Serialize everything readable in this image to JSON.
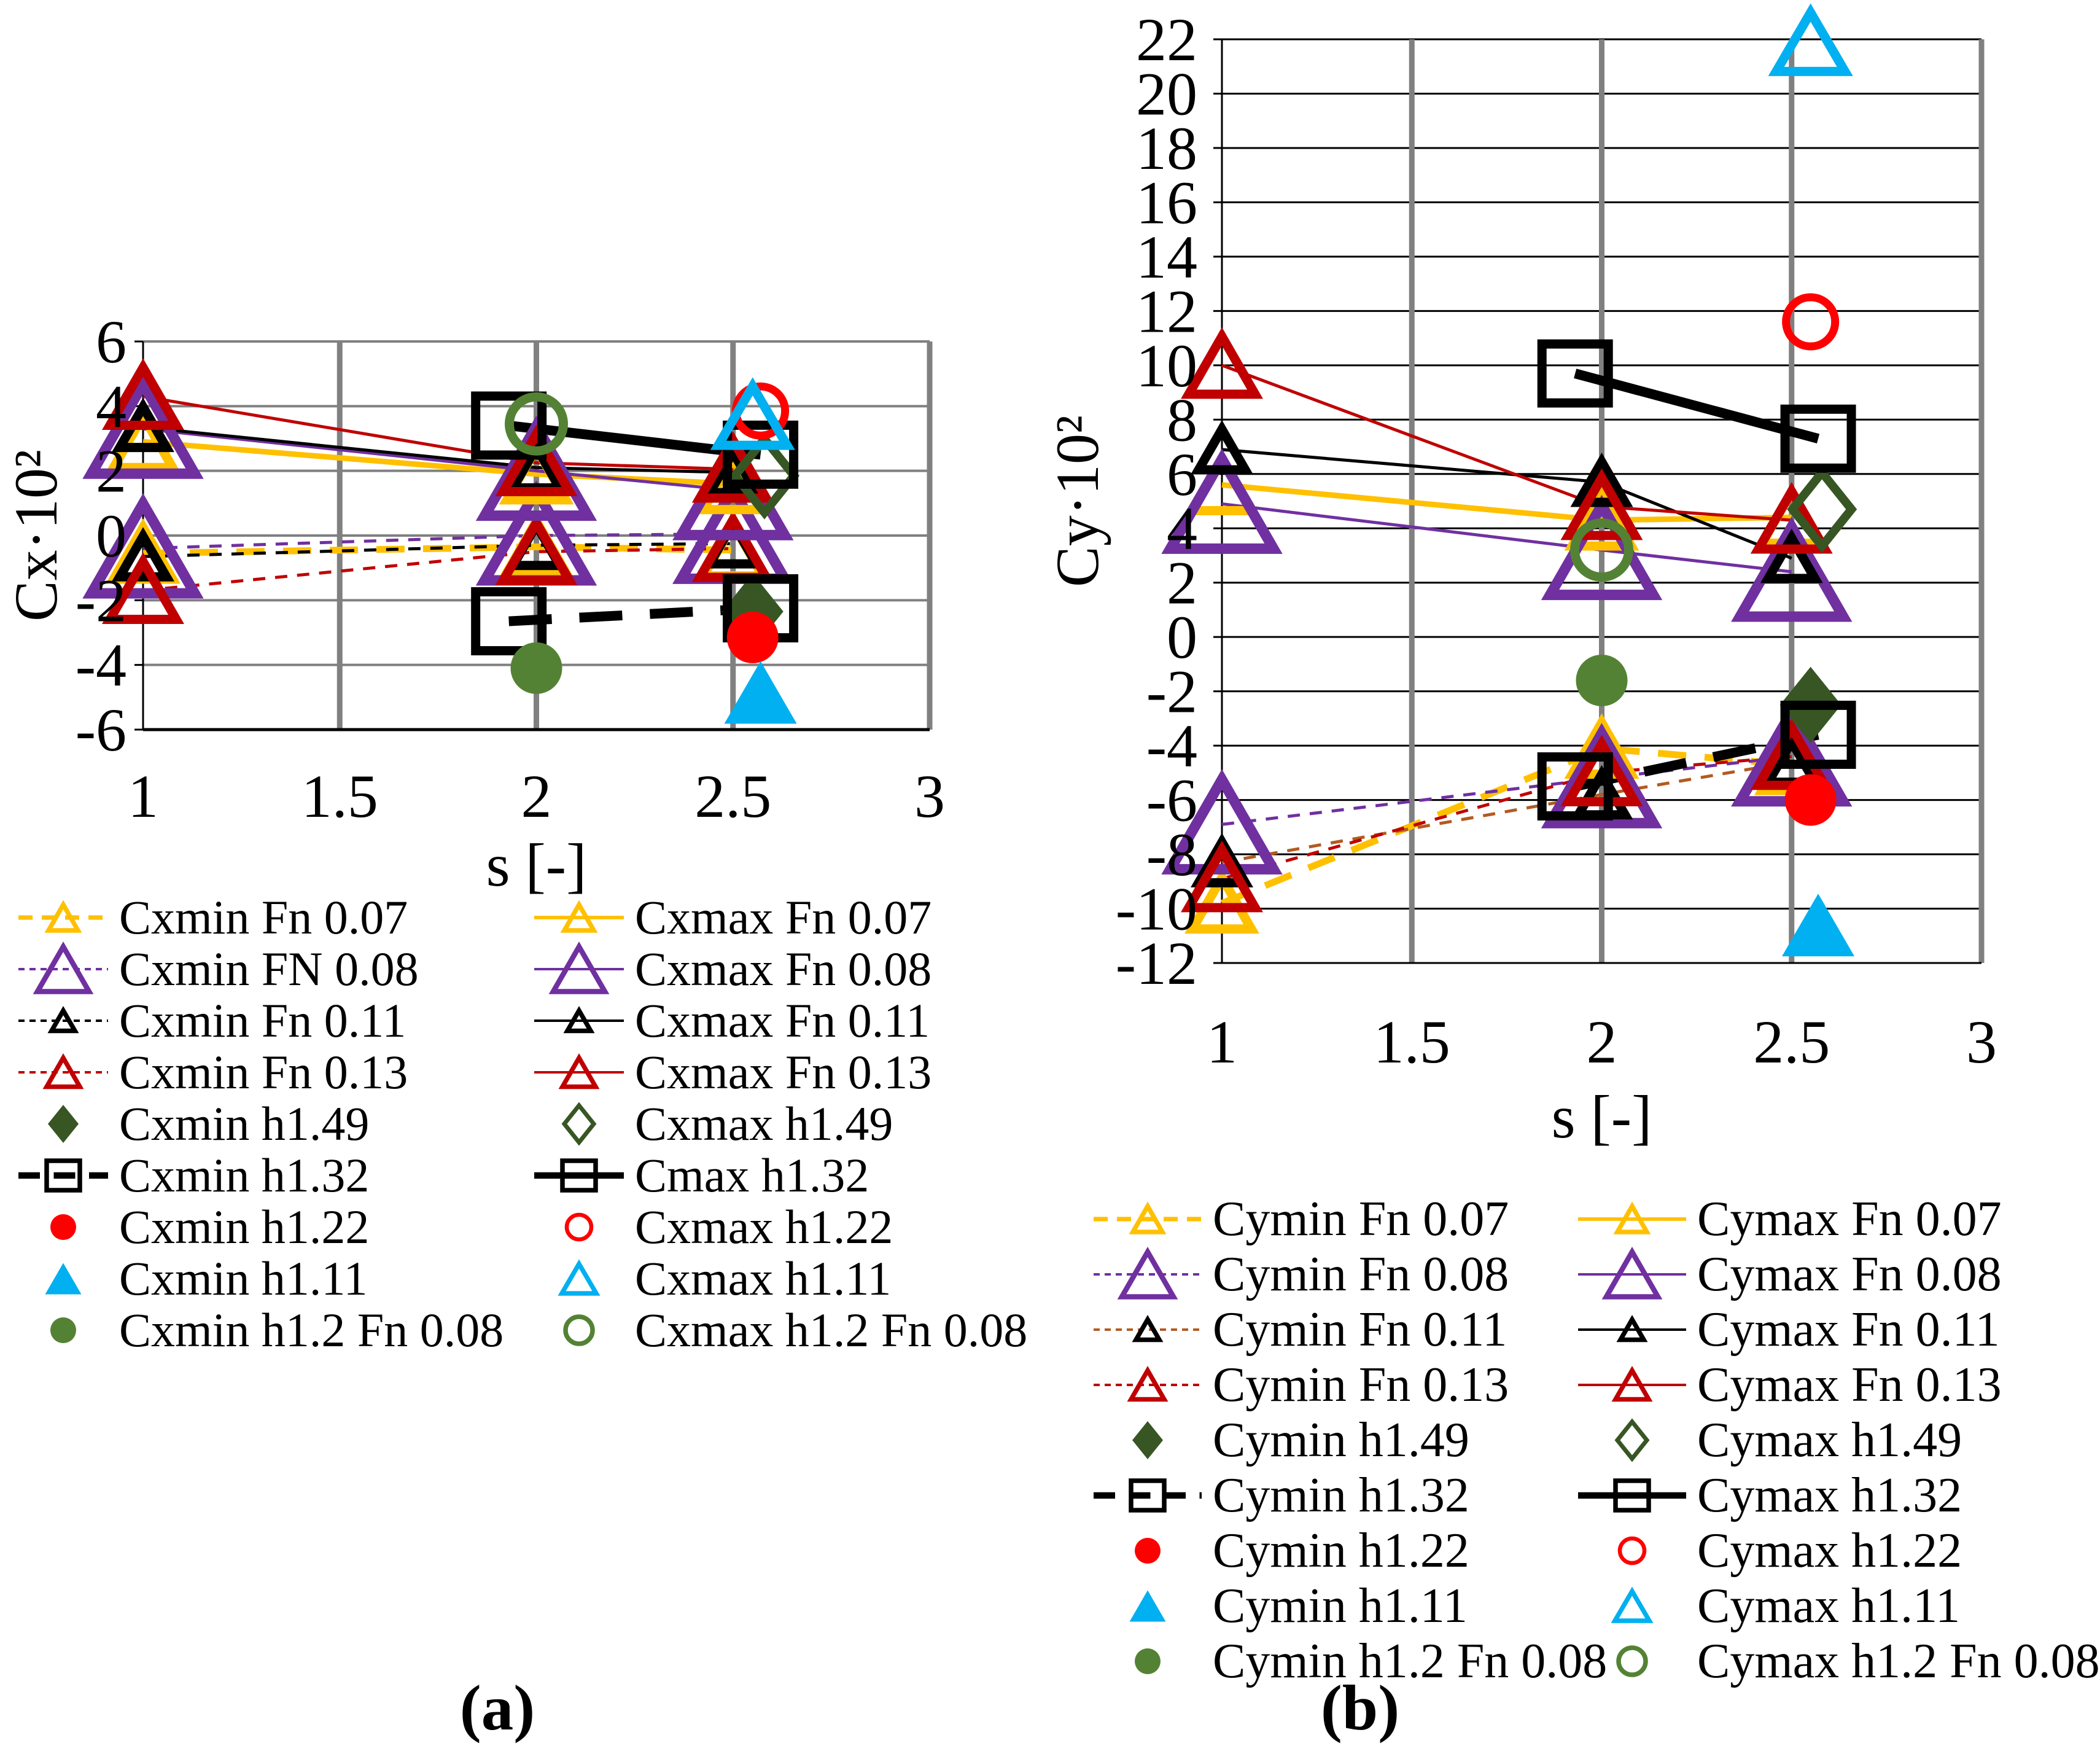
{
  "figure": {
    "caption_a": "(a)",
    "caption_b": "(b)",
    "background": "#FFFFFF",
    "grid_vertical_color": "#808080",
    "grid_horizontal_color_a": "#808080",
    "grid_horizontal_color_b": "#000000",
    "axis_color": "#000000"
  },
  "chart_data": [
    {
      "key": "a",
      "type": "scatter",
      "x_label": "s [-]",
      "y_label": "Cx·10²",
      "x_ticks": [
        1,
        1.5,
        2,
        2.5,
        3
      ],
      "x_min": 1,
      "x_max": 3,
      "y_min": -6,
      "y_max": 6,
      "y_step": 2,
      "grid": "on",
      "legend_position": "below",
      "series": [
        {
          "id": "cxmin-fn007",
          "label": "Cxmin Fn 0.07",
          "color": "#FFC000",
          "line": {
            "style": "dashed",
            "width": 11,
            "dash": "46 30"
          },
          "marker": {
            "shape": "triangle",
            "fill": "open",
            "w": 96,
            "h": 84,
            "sw": 15
          },
          "points": [
            [
              1,
              -0.55
            ],
            [
              2,
              -0.35
            ],
            [
              2.5,
              -0.45
            ]
          ]
        },
        {
          "id": "cxmin-fn008",
          "label": "Cxmin FN 0.08",
          "color": "#7030A0",
          "line": {
            "style": "dashed",
            "width": 5,
            "dash": "20 16"
          },
          "marker": {
            "shape": "triangle",
            "fill": "open",
            "w": 168,
            "h": 146,
            "sw": 17
          },
          "points": [
            [
              1,
              -0.4
            ],
            [
              2,
              0.0
            ],
            [
              2.5,
              0.05
            ]
          ]
        },
        {
          "id": "cxmin-fn011",
          "label": "Cxmin Fn 0.11",
          "color": "#000000",
          "line": {
            "style": "dashed",
            "width": 5,
            "dash": "20 16"
          },
          "marker": {
            "shape": "triangle",
            "fill": "open",
            "w": 76,
            "h": 66,
            "sw": 15
          },
          "points": [
            [
              1,
              -0.65
            ],
            [
              2,
              -0.3
            ],
            [
              2.5,
              -0.25
            ]
          ]
        },
        {
          "id": "cxmin-fn013",
          "label": "Cxmin Fn 0.13",
          "color": "#C00000",
          "line": {
            "style": "dashed",
            "width": 5,
            "dash": "20 16"
          },
          "marker": {
            "shape": "triangle",
            "fill": "open",
            "w": 108,
            "h": 94,
            "sw": 15
          },
          "points": [
            [
              1,
              -1.7
            ],
            [
              2,
              -0.5
            ],
            [
              2.5,
              -0.4
            ]
          ]
        },
        {
          "id": "cxmin-h149",
          "label": "Cxmin h1.49",
          "color": "#375623",
          "marker": {
            "shape": "diamond",
            "fill": "solid",
            "w": 100,
            "h": 124
          },
          "points": [
            [
              2.55,
              -2.35
            ]
          ]
        },
        {
          "id": "cxmin-h132",
          "label": "Cxmin h1.32",
          "color": "#000000",
          "line": {
            "style": "dashed",
            "width": 16,
            "dash": "70 45"
          },
          "marker": {
            "shape": "square",
            "fill": "open",
            "w": 108,
            "h": 96,
            "sw": 15
          },
          "points": [
            [
              1.93,
              -2.65
            ],
            [
              2.57,
              -2.25
            ]
          ]
        },
        {
          "id": "cxmin-h122",
          "label": "Cxmin h1.22",
          "color": "#FF0000",
          "marker": {
            "shape": "circle",
            "fill": "solid",
            "r": 42
          },
          "points": [
            [
              2.55,
              -3.15
            ]
          ]
        },
        {
          "id": "cxmin-h111",
          "label": "Cxmin h1.11",
          "color": "#00B0F0",
          "marker": {
            "shape": "triangle",
            "fill": "solid",
            "w": 118,
            "h": 102
          },
          "points": [
            [
              2.57,
              -4.85
            ]
          ]
        },
        {
          "id": "cxmin-h12fn008",
          "label": "Cxmin h1.2 Fn 0.08",
          "color": "#548235",
          "marker": {
            "shape": "circle",
            "fill": "solid",
            "r": 42
          },
          "points": [
            [
              2,
              -4.1
            ]
          ]
        },
        {
          "id": "cxmax-fn007",
          "label": "Cxmax Fn 0.07",
          "color": "#FFC000",
          "line": {
            "style": "solid",
            "width": 9
          },
          "marker": {
            "shape": "triangle",
            "fill": "open",
            "w": 96,
            "h": 84,
            "sw": 15
          },
          "points": [
            [
              1,
              2.9
            ],
            [
              2,
              1.9
            ],
            [
              2.5,
              1.6
            ]
          ]
        },
        {
          "id": "cxmax-fn008",
          "label": "Cxmax Fn 0.08",
          "color": "#7030A0",
          "line": {
            "style": "solid",
            "width": 5
          },
          "marker": {
            "shape": "triangle",
            "fill": "open",
            "w": 168,
            "h": 146,
            "sw": 17
          },
          "points": [
            [
              1,
              3.3
            ],
            [
              2,
              2.0
            ],
            [
              2.5,
              1.4
            ]
          ]
        },
        {
          "id": "cxmax-fn011",
          "label": "Cxmax Fn 0.11",
          "color": "#000000",
          "line": {
            "style": "solid",
            "width": 5
          },
          "marker": {
            "shape": "triangle",
            "fill": "open",
            "w": 76,
            "h": 66,
            "sw": 15
          },
          "points": [
            [
              1,
              3.35
            ],
            [
              2,
              2.1
            ],
            [
              2.5,
              1.95
            ]
          ]
        },
        {
          "id": "cxmax-fn013",
          "label": "Cxmax Fn 0.13",
          "color": "#C00000",
          "line": {
            "style": "solid",
            "width": 5
          },
          "marker": {
            "shape": "triangle",
            "fill": "open",
            "w": 108,
            "h": 94,
            "sw": 15
          },
          "points": [
            [
              1,
              4.3
            ],
            [
              2,
              2.25
            ],
            [
              2.5,
              2.05
            ]
          ]
        },
        {
          "id": "cxmax-h149",
          "label": "Cxmax h1.49",
          "color": "#375623",
          "marker": {
            "shape": "diamond",
            "fill": "open",
            "w": 96,
            "h": 120,
            "sw": 14
          },
          "points": [
            [
              2.58,
              1.85
            ]
          ]
        },
        {
          "id": "cmax-h132",
          "label": "Cmax h1.32",
          "color": "#000000",
          "line": {
            "style": "solid",
            "width": 16
          },
          "marker": {
            "shape": "square",
            "fill": "open",
            "w": 108,
            "h": 96,
            "sw": 15
          },
          "points": [
            [
              1.93,
              3.4
            ],
            [
              2.57,
              2.5
            ]
          ]
        },
        {
          "id": "cxmax-h122",
          "label": "Cxmax h1.22",
          "color": "#FF0000",
          "marker": {
            "shape": "circle",
            "fill": "open",
            "r": 40,
            "sw": 13
          },
          "points": [
            [
              2.57,
              3.85
            ]
          ]
        },
        {
          "id": "cxmax-h111",
          "label": "Cxmax h1.11",
          "color": "#00B0F0",
          "marker": {
            "shape": "triangle",
            "fill": "open",
            "w": 112,
            "h": 96,
            "sw": 15
          },
          "points": [
            [
              2.55,
              3.7
            ]
          ]
        },
        {
          "id": "cxmax-h12fn008",
          "label": "Cxmax h1.2 Fn 0.08",
          "color": "#548235",
          "marker": {
            "shape": "circle",
            "fill": "open",
            "r": 44,
            "sw": 15
          },
          "points": [
            [
              2,
              3.45
            ]
          ]
        }
      ],
      "legend_left": [
        "cxmin-fn007",
        "cxmin-fn008",
        "cxmin-fn011",
        "cxmin-fn013",
        "cxmin-h149",
        "cxmin-h132",
        "cxmin-h122",
        "cxmin-h111",
        "cxmin-h12fn008"
      ],
      "legend_right": [
        "cxmax-fn007",
        "cxmax-fn008",
        "cxmax-fn011",
        "cxmax-fn013",
        "cxmax-h149",
        "cmax-h132",
        "cxmax-h122",
        "cxmax-h111",
        "cxmax-h12fn008"
      ]
    },
    {
      "key": "b",
      "type": "scatter",
      "x_label": "s [-]",
      "y_label": "Cy·10²",
      "x_ticks": [
        1,
        1.5,
        2,
        2.5,
        3
      ],
      "x_min": 1,
      "x_max": 3,
      "y_min": -12,
      "y_max": 22,
      "y_step": 2,
      "grid": "on",
      "legend_position": "below",
      "series": [
        {
          "id": "cymin-fn007",
          "label": "Cymin Fn 0.07",
          "color": "#FFC000",
          "line": {
            "style": "dashed",
            "width": 11,
            "dash": "46 30"
          },
          "marker": {
            "shape": "triangle",
            "fill": "open",
            "w": 96,
            "h": 84,
            "sw": 15
          },
          "points": [
            [
              1,
              -9.8
            ],
            [
              2,
              -4.1
            ],
            [
              2.5,
              -4.7
            ]
          ]
        },
        {
          "id": "cymin-fn008",
          "label": "Cymin Fn 0.08",
          "color": "#7030A0",
          "line": {
            "style": "dashed",
            "width": 5,
            "dash": "20 16"
          },
          "marker": {
            "shape": "triangle",
            "fill": "open",
            "w": 168,
            "h": 146,
            "sw": 17
          },
          "points": [
            [
              1,
              -6.9
            ],
            [
              2,
              -5.2
            ],
            [
              2.5,
              -4.4
            ]
          ]
        },
        {
          "id": "cymin-fn011",
          "label": "Cymin Fn 0.11",
          "color": "#000000",
          "line_color": "#B35A1F",
          "line": {
            "style": "dashed",
            "width": 5,
            "dash": "20 16"
          },
          "marker": {
            "shape": "triangle",
            "fill": "open",
            "w": 76,
            "h": 66,
            "sw": 15
          },
          "points": [
            [
              1,
              -8.3
            ],
            [
              2,
              -5.8
            ],
            [
              2.5,
              -4.6
            ]
          ]
        },
        {
          "id": "cymin-fn013",
          "label": "Cymin Fn 0.13",
          "color": "#C00000",
          "line": {
            "style": "dashed",
            "width": 5,
            "dash": "20 16"
          },
          "marker": {
            "shape": "triangle",
            "fill": "open",
            "w": 108,
            "h": 94,
            "sw": 15
          },
          "points": [
            [
              1,
              -8.9
            ],
            [
              2,
              -5.0
            ],
            [
              2.5,
              -4.4
            ]
          ]
        },
        {
          "id": "cymin-h149",
          "label": "Cymin h1.49",
          "color": "#375623",
          "marker": {
            "shape": "diamond",
            "fill": "solid",
            "w": 100,
            "h": 124
          },
          "points": [
            [
              2.55,
              -2.5
            ]
          ]
        },
        {
          "id": "cymin-h132",
          "label": "Cymin h1.32",
          "color": "#000000",
          "line": {
            "style": "dashed",
            "width": 16,
            "dash": "70 45"
          },
          "marker": {
            "shape": "square",
            "fill": "open",
            "w": 108,
            "h": 96,
            "sw": 15
          },
          "points": [
            [
              1.93,
              -5.5
            ],
            [
              2.57,
              -3.6
            ]
          ]
        },
        {
          "id": "cymin-h122",
          "label": "Cymin h1.22",
          "color": "#FF0000",
          "marker": {
            "shape": "circle",
            "fill": "solid",
            "r": 42
          },
          "points": [
            [
              2.55,
              -6.0
            ]
          ]
        },
        {
          "id": "cymin-h111",
          "label": "Cymin h1.11",
          "color": "#00B0F0",
          "marker": {
            "shape": "triangle",
            "fill": "solid",
            "w": 118,
            "h": 102
          },
          "points": [
            [
              2.57,
              -10.6
            ]
          ]
        },
        {
          "id": "cymin-h12fn008",
          "label": "Cymin h1.2 Fn 0.08",
          "color": "#548235",
          "marker": {
            "shape": "circle",
            "fill": "solid",
            "r": 42
          },
          "points": [
            [
              2,
              -1.6
            ]
          ]
        },
        {
          "id": "cymax-fn007",
          "label": "Cymax Fn 0.07",
          "color": "#FFC000",
          "line": {
            "style": "solid",
            "width": 9
          },
          "marker": {
            "shape": "triangle",
            "fill": "open",
            "w": 96,
            "h": 84,
            "sw": 15
          },
          "points": [
            [
              1,
              5.6
            ],
            [
              2,
              4.3
            ],
            [
              2.5,
              4.4
            ]
          ]
        },
        {
          "id": "cymax-fn008",
          "label": "Cymax Fn 0.08",
          "color": "#7030A0",
          "line": {
            "style": "solid",
            "width": 5
          },
          "marker": {
            "shape": "triangle",
            "fill": "open",
            "w": 168,
            "h": 146,
            "sw": 17
          },
          "points": [
            [
              1,
              4.9
            ],
            [
              2,
              3.2
            ],
            [
              2.5,
              2.4
            ]
          ]
        },
        {
          "id": "cymax-fn011",
          "label": "Cymax Fn 0.11",
          "color": "#000000",
          "line": {
            "style": "solid",
            "width": 5
          },
          "marker": {
            "shape": "triangle",
            "fill": "open",
            "w": 76,
            "h": 66,
            "sw": 15
          },
          "points": [
            [
              1,
              6.9
            ],
            [
              2,
              5.7
            ],
            [
              2.5,
              2.9
            ]
          ]
        },
        {
          "id": "cymax-fn013",
          "label": "Cymax Fn 0.13",
          "color": "#C00000",
          "line": {
            "style": "solid",
            "width": 5
          },
          "marker": {
            "shape": "triangle",
            "fill": "open",
            "w": 108,
            "h": 94,
            "sw": 15
          },
          "points": [
            [
              1,
              10.0
            ],
            [
              2,
              4.8
            ],
            [
              2.5,
              4.3
            ]
          ]
        },
        {
          "id": "cymax-h149",
          "label": "Cymax h1.49",
          "color": "#375623",
          "marker": {
            "shape": "diamond",
            "fill": "open",
            "w": 96,
            "h": 120,
            "sw": 14
          },
          "points": [
            [
              2.58,
              4.7
            ]
          ]
        },
        {
          "id": "cymax-h132",
          "label": "Cymax h1.32",
          "color": "#000000",
          "line": {
            "style": "solid",
            "width": 16
          },
          "marker": {
            "shape": "square",
            "fill": "open",
            "w": 108,
            "h": 96,
            "sw": 15
          },
          "points": [
            [
              1.93,
              9.7
            ],
            [
              2.57,
              7.3
            ]
          ]
        },
        {
          "id": "cymax-h122",
          "label": "Cymax h1.22",
          "color": "#FF0000",
          "marker": {
            "shape": "circle",
            "fill": "open",
            "r": 40,
            "sw": 13
          },
          "points": [
            [
              2.55,
              11.6
            ]
          ]
        },
        {
          "id": "cymax-h111",
          "label": "Cymax h1.11",
          "color": "#00B0F0",
          "marker": {
            "shape": "triangle",
            "fill": "open",
            "w": 112,
            "h": 96,
            "sw": 15
          },
          "points": [
            [
              2.55,
              21.9
            ]
          ]
        },
        {
          "id": "cymax-h12fn008",
          "label": "Cymax h1.2 Fn 0.08",
          "color": "#548235",
          "marker": {
            "shape": "circle",
            "fill": "open",
            "r": 44,
            "sw": 15
          },
          "points": [
            [
              2,
              3.2
            ]
          ]
        }
      ],
      "legend_left": [
        "cymin-fn007",
        "cymin-fn008",
        "cymin-fn011",
        "cymin-fn013",
        "cymin-h149",
        "cymin-h132",
        "cymin-h122",
        "cymin-h111",
        "cymin-h12fn008"
      ],
      "legend_right": [
        "cymax-fn007",
        "cymax-fn008",
        "cymax-fn011",
        "cymax-fn013",
        "cymax-h149",
        "cymax-h132",
        "cymax-h122",
        "cymax-h111",
        "cymax-h12fn008"
      ]
    }
  ]
}
